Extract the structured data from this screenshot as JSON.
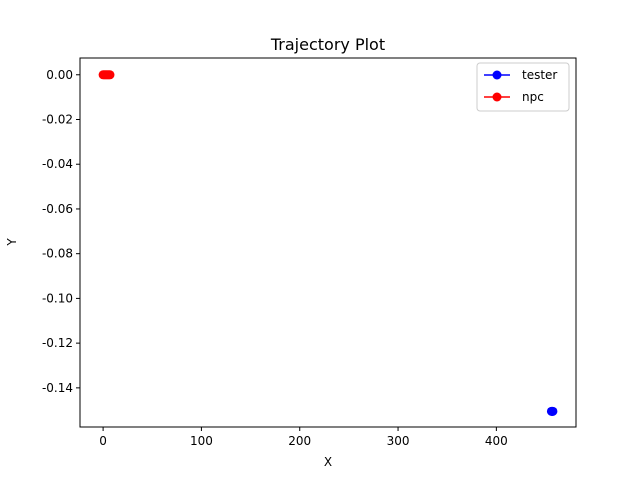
{
  "chart_data": {
    "type": "line",
    "title": "Trajectory Plot",
    "xlabel": "X",
    "ylabel": "Y",
    "xlim": [
      -23.5,
      481
    ],
    "ylim": [
      -0.1575,
      0.0075
    ],
    "xticks": [
      0,
      100,
      200,
      300,
      400
    ],
    "yticks": [
      0.0,
      -0.02,
      -0.04,
      -0.06,
      -0.08,
      -0.1,
      -0.12,
      -0.14
    ],
    "grid": false,
    "legend_position": "top-right",
    "series": [
      {
        "name": "tester",
        "color": "#0000ff",
        "marker": "circle",
        "x": [
          456.0,
          456.5,
          457.0,
          457.5
        ],
        "y": [
          -0.1505,
          -0.1505,
          -0.1505,
          -0.1505
        ]
      },
      {
        "name": "npc",
        "color": "#ff0000",
        "marker": "circle",
        "x": [
          0,
          1,
          2,
          3,
          4,
          5,
          6,
          7
        ],
        "y": [
          0,
          0,
          0,
          0,
          0,
          0,
          0,
          0
        ]
      }
    ]
  }
}
